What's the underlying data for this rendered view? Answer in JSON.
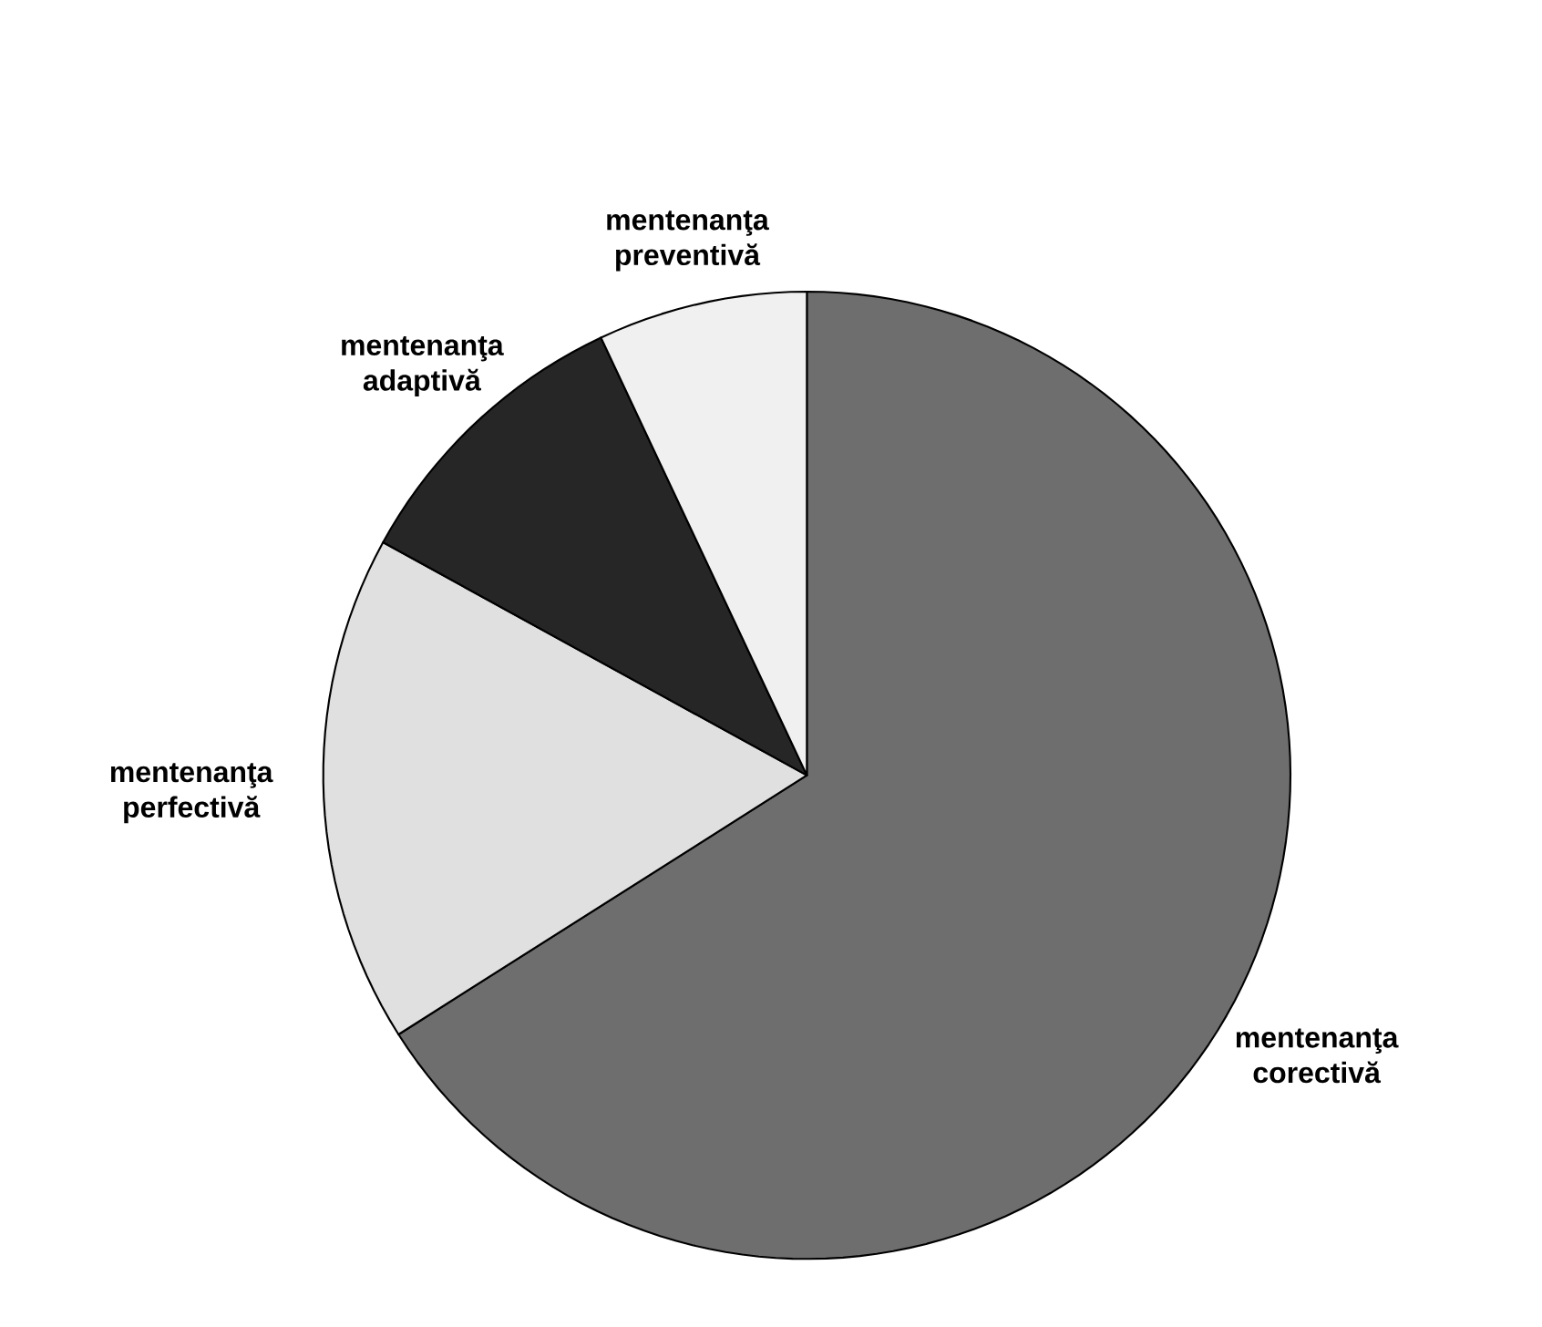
{
  "chart_data": {
    "type": "pie",
    "categories": [
      "mentenanţa corectivă",
      "mentenanţa perfectivă",
      "mentenanţa adaptivă",
      "mentenanţa preventivă"
    ],
    "values": [
      66,
      17,
      10,
      7
    ],
    "colors": [
      "#6e6e6e",
      "#e0e0e0",
      "#262626",
      "#f0f0f0"
    ]
  }
}
